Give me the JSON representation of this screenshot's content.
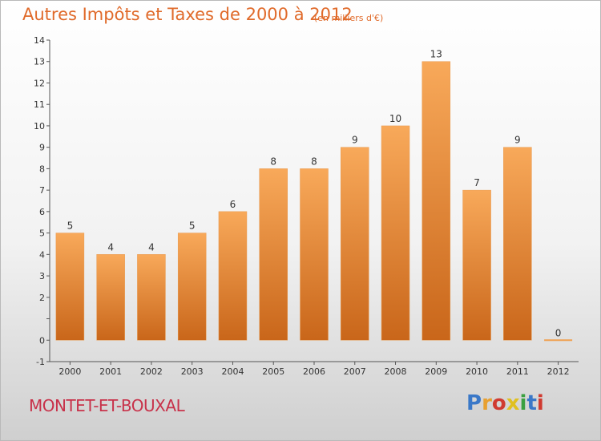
{
  "title": "Autres Impôts et Taxes de 2000 à 2012",
  "subtitle": "(en milliers d'€)",
  "commune": "MONTET-ET-BOUXAL",
  "logo": {
    "text": "Proxiti",
    "letters": [
      "P",
      "r",
      "o",
      "x",
      "i",
      "t",
      "i"
    ],
    "colors": [
      "#3a78c8",
      "#e8a030",
      "#d03a30",
      "#e0c020",
      "#3aa040",
      "#3a78c8",
      "#d03a30"
    ]
  },
  "colors": {
    "bar_light": "#f7a556",
    "bar_dark": "#c9661a",
    "title": "#e06a2a",
    "commune": "#c8324a"
  },
  "chart_data": {
    "type": "bar",
    "title": "Autres Impôts et Taxes de 2000 à 2012",
    "subtitle": "(en milliers d'€)",
    "categories": [
      "2000",
      "2001",
      "2002",
      "2003",
      "2004",
      "2005",
      "2006",
      "2007",
      "2008",
      "2009",
      "2010",
      "2011",
      "2012"
    ],
    "values": [
      5,
      4,
      4,
      5,
      6,
      8,
      8,
      9,
      10,
      13,
      7,
      9,
      0
    ],
    "data_labels": [
      "5",
      "4",
      "4",
      "5",
      "6",
      "8",
      "8",
      "9",
      "10",
      "13",
      "7",
      "9",
      "0"
    ],
    "y_ticks": [
      "-1",
      "0",
      "",
      "2",
      "3",
      "4",
      "5",
      "6",
      "7",
      "8",
      "9",
      "10",
      "11",
      "12",
      "13",
      "14"
    ],
    "y_tick_values": [
      -1,
      0,
      1,
      2,
      3,
      4,
      5,
      6,
      7,
      8,
      9,
      10,
      11,
      12,
      13,
      14
    ],
    "ylim": [
      -1,
      14
    ],
    "grid": false,
    "legend": "none"
  }
}
